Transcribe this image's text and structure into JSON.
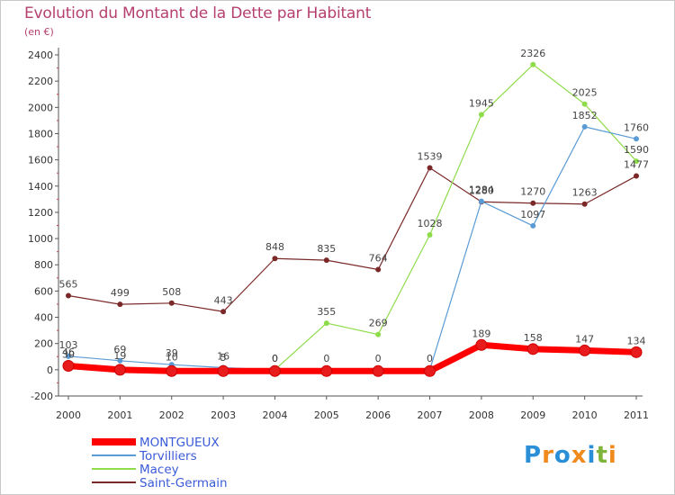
{
  "title": "Evolution du Montant de la Dette par Habitant",
  "subtitle": "(en €)",
  "brand": {
    "letters": [
      "P",
      "r",
      "o",
      "x",
      "i",
      "t",
      "i"
    ],
    "colors": [
      "#2a8fd6",
      "#f08a1c",
      "#2a8fd6",
      "#f08a1c",
      "#2a8fd6",
      "#7fb43a",
      "#f08a1c"
    ]
  },
  "chart_data": {
    "type": "line",
    "x": [
      "2000",
      "2001",
      "2002",
      "2003",
      "2004",
      "2005",
      "2006",
      "2007",
      "2008",
      "2009",
      "2010",
      "2011"
    ],
    "ylim": [
      -200,
      2400
    ],
    "yticks": [
      "-200",
      "0",
      "200",
      "400",
      "600",
      "800",
      "1000",
      "1200",
      "1400",
      "1600",
      "1800",
      "2000",
      "2200",
      "2400"
    ],
    "grid": false,
    "legend_position": "bottom-left",
    "series": [
      {
        "name": "MONTGUEUX",
        "color": "#ff0000",
        "values": [
          30,
          0,
          -10,
          -10,
          -10,
          -10,
          -10,
          -10,
          189,
          158,
          147,
          134
        ],
        "labels": [
          "30",
          "",
          "",
          "",
          "",
          "",
          "",
          "",
          "189",
          "158",
          "147",
          "134"
        ]
      },
      {
        "name": "Torvilliers",
        "color": "#5b9bd5",
        "values": [
          103,
          69,
          39,
          16,
          0,
          0,
          0,
          0,
          1284,
          1097,
          1852,
          1760
        ],
        "labels": [
          "103",
          "69",
          "39",
          "16",
          "0",
          "0",
          "0",
          "0",
          "1284",
          "1097",
          "1852",
          "1760"
        ]
      },
      {
        "name": "Macey",
        "color": "#8fdc4a",
        "values": [
          46,
          19,
          10,
          5,
          0,
          355,
          269,
          1028,
          1945,
          2326,
          2025,
          1590
        ],
        "labels": [
          "46",
          "19",
          "10",
          "5",
          "0",
          "355",
          "269",
          "1028",
          "1945",
          "2326",
          "2025",
          "1590"
        ]
      },
      {
        "name": "Saint-Germain",
        "color": "#7a2828",
        "values": [
          565,
          499,
          508,
          443,
          848,
          835,
          764,
          1539,
          1280,
          1270,
          1263,
          1477
        ],
        "labels": [
          "565",
          "499",
          "508",
          "443",
          "848",
          "835",
          "764",
          "1539",
          "1280",
          "1270",
          "1263",
          "1477"
        ]
      }
    ]
  }
}
